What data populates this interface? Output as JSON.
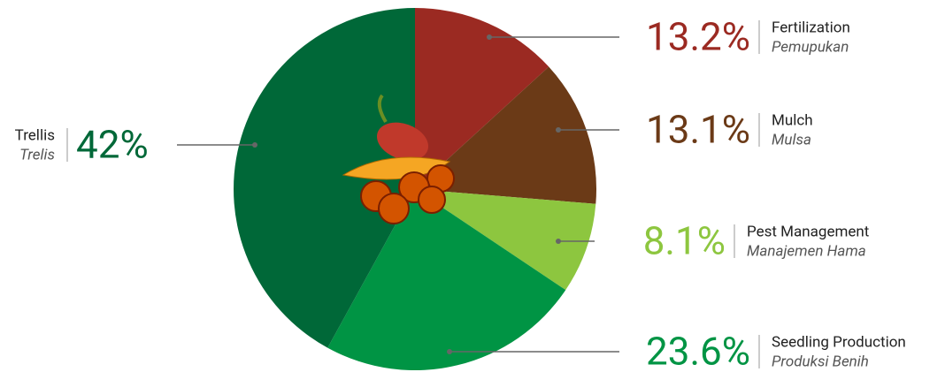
{
  "chart_data": {
    "type": "pie",
    "categories": [
      "Fertilization",
      "Mulch",
      "Pest Management",
      "Seedling Production",
      "Trellis"
    ],
    "translations": [
      "Pemupukan",
      "Mulsa",
      "Manajemen Hama",
      "Produksi Benih",
      "Trelis"
    ],
    "values": [
      13.2,
      13.1,
      8.1,
      23.6,
      42
    ],
    "value_labels": [
      "13.2%",
      "13.1%",
      "8.1%",
      "23.6%",
      "42%"
    ],
    "colors": [
      "#9b2a22",
      "#6b3a17",
      "#8dc63f",
      "#009444",
      "#006838"
    ]
  }
}
